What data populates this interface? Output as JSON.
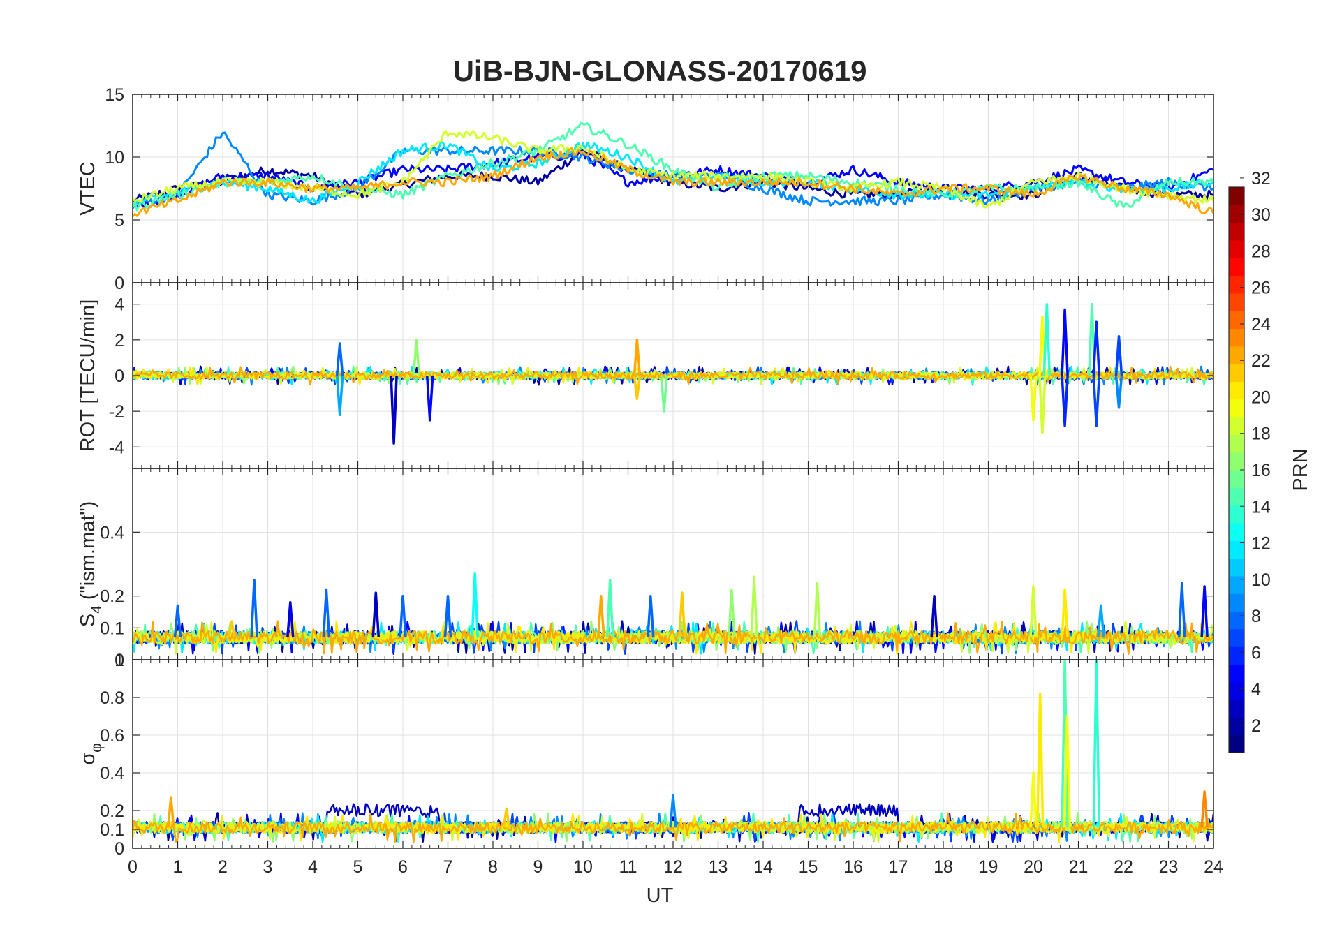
{
  "chart_data": {
    "type": "line",
    "title": "UiB-BJN-GLONASS-20170619",
    "xlabel": "UT",
    "xlim": [
      0,
      24
    ],
    "x_ticks": [
      0,
      1,
      2,
      3,
      4,
      5,
      6,
      7,
      8,
      9,
      10,
      11,
      12,
      13,
      14,
      15,
      16,
      17,
      18,
      19,
      20,
      21,
      22,
      23,
      24
    ],
    "x_tick_labels": [
      "0",
      "1",
      "2",
      "3",
      "4",
      "5",
      "6",
      "7",
      "8",
      "9",
      "10",
      "11",
      "12",
      "13",
      "14",
      "15",
      "16",
      "17",
      "18",
      "19",
      "20",
      "21",
      "22",
      "23",
      "24"
    ],
    "grid": true,
    "panels": [
      {
        "id": "vtec",
        "ylabel": "VTEC",
        "ylim": [
          0,
          15
        ],
        "y_ticks": [
          0,
          5,
          10,
          15
        ],
        "y_tick_labels": [
          "0",
          "5",
          "10",
          "15"
        ],
        "series": [
          {
            "prn": 2,
            "x": [
              0,
              1,
              2,
              3,
              4,
              5,
              6,
              7,
              8,
              9,
              10,
              11,
              12,
              13,
              14,
              15,
              16,
              17,
              18,
              19,
              20,
              21,
              22,
              23,
              24
            ],
            "y": [
              6.5,
              7.5,
              8.0,
              9.0,
              8.5,
              7.0,
              7.8,
              8.5,
              8.5,
              8.0,
              10.5,
              9.0,
              8.0,
              7.5,
              8.0,
              7.5,
              7.0,
              7.0,
              7.5,
              7.0,
              7.0,
              8.5,
              7.5,
              7.0,
              7.0
            ]
          },
          {
            "prn": 5,
            "x": [
              0,
              1,
              2,
              3,
              4,
              5,
              6,
              7,
              8,
              9,
              10,
              11,
              12,
              13,
              14,
              15,
              16,
              17,
              18,
              19,
              20,
              21,
              22,
              23,
              24
            ],
            "y": [
              6.0,
              7.0,
              8.5,
              8.5,
              7.5,
              8.0,
              9.0,
              9.0,
              9.5,
              10.0,
              10.2,
              8.0,
              8.5,
              9.0,
              8.5,
              8.0,
              9.0,
              8.0,
              7.5,
              7.5,
              8.0,
              9.0,
              8.0,
              7.5,
              9.0
            ]
          },
          {
            "prn": 9,
            "x": [
              0,
              1,
              2,
              3,
              4,
              5,
              6,
              7,
              8,
              9,
              10,
              11,
              12,
              13,
              14,
              15,
              16,
              17,
              18,
              19,
              20,
              21,
              22,
              23,
              24
            ],
            "y": [
              6.2,
              7.0,
              12.0,
              7.0,
              6.5,
              7.5,
              10.5,
              10.5,
              10.5,
              10.5,
              10.0,
              9.0,
              8.5,
              8.5,
              7.5,
              6.5,
              6.5,
              6.5,
              7.0,
              6.5,
              7.5,
              8.0,
              7.5,
              8.0,
              7.5
            ]
          },
          {
            "prn": 12,
            "x": [
              0,
              1,
              2,
              3,
              4,
              5,
              6,
              7,
              8,
              9,
              10,
              11,
              12,
              13,
              14,
              15,
              16,
              17,
              18,
              19,
              20,
              21,
              22,
              23,
              24
            ],
            "y": [
              6.3,
              7.2,
              8.0,
              7.5,
              6.5,
              8.0,
              10.5,
              11.0,
              9.0,
              9.5,
              11.0,
              10.0,
              8.0,
              8.5,
              8.0,
              8.0,
              7.5,
              7.0,
              7.0,
              7.0,
              7.5,
              8.0,
              7.5,
              7.5,
              8.0
            ]
          },
          {
            "prn": 15,
            "x": [
              0,
              1,
              2,
              3,
              4,
              5,
              6,
              7,
              8,
              9,
              10,
              11,
              12,
              13,
              14,
              15,
              16,
              17,
              18,
              19,
              20,
              21,
              22,
              23,
              24
            ],
            "y": [
              6.0,
              7.0,
              8.0,
              8.0,
              8.5,
              7.5,
              7.0,
              8.5,
              9.5,
              10.5,
              12.5,
              11.0,
              9.0,
              7.5,
              8.5,
              8.5,
              8.0,
              7.5,
              7.0,
              7.5,
              7.5,
              8.0,
              6.0,
              8.0,
              8.0
            ]
          },
          {
            "prn": 19,
            "x": [
              0,
              1,
              2,
              3,
              4,
              5,
              6,
              7,
              8,
              9,
              10,
              11,
              12,
              13,
              14,
              15,
              16,
              17,
              18,
              19,
              20,
              21,
              22,
              23,
              24
            ],
            "y": [
              6.5,
              7.5,
              8.0,
              8.0,
              7.5,
              7.0,
              8.0,
              12.0,
              11.5,
              10.5,
              10.8,
              9.0,
              8.5,
              8.5,
              8.5,
              8.0,
              7.5,
              8.0,
              7.5,
              6.0,
              8.0,
              8.5,
              7.5,
              7.0,
              6.5
            ]
          },
          {
            "prn": 23,
            "x": [
              0,
              1,
              2,
              3,
              4,
              5,
              6,
              7,
              8,
              9,
              10,
              11,
              12,
              13,
              14,
              15,
              16,
              17,
              18,
              19,
              20,
              21,
              22,
              23,
              24
            ],
            "y": [
              5.5,
              6.5,
              8.0,
              8.0,
              7.5,
              7.5,
              8.0,
              8.0,
              8.5,
              10.0,
              10.5,
              9.0,
              8.0,
              8.0,
              8.0,
              8.0,
              7.5,
              7.0,
              7.5,
              7.5,
              7.0,
              8.5,
              7.5,
              7.0,
              5.5
            ]
          }
        ]
      },
      {
        "id": "rot",
        "ylabel": "ROT [TECU/min]",
        "ylim": [
          -5.2,
          5.2
        ],
        "y_ticks": [
          -4,
          -2,
          0,
          2,
          4
        ],
        "y_tick_labels": [
          "-4",
          "-2",
          "0",
          "2",
          "4"
        ],
        "baseline": 0,
        "noise": 0.2,
        "spikes": [
          {
            "x": 4.6,
            "y": 1.8,
            "prn": 8
          },
          {
            "x": 4.6,
            "y": -2.2,
            "prn": 10
          },
          {
            "x": 5.8,
            "y": -3.8,
            "prn": 3
          },
          {
            "x": 6.3,
            "y": 2.0,
            "prn": 17
          },
          {
            "x": 6.6,
            "y": -2.5,
            "prn": 5
          },
          {
            "x": 11.2,
            "y": 2.0,
            "prn": 23
          },
          {
            "x": 11.2,
            "y": -1.3,
            "prn": 22
          },
          {
            "x": 11.8,
            "y": -2.0,
            "prn": 16
          },
          {
            "x": 20.0,
            "y": -2.5,
            "prn": 20
          },
          {
            "x": 20.2,
            "y": 3.3,
            "prn": 20
          },
          {
            "x": 20.3,
            "y": 4.0,
            "prn": 14
          },
          {
            "x": 20.2,
            "y": -3.2,
            "prn": 19
          },
          {
            "x": 20.7,
            "y": 3.7,
            "prn": 5
          },
          {
            "x": 20.7,
            "y": -2.8,
            "prn": 6
          },
          {
            "x": 21.3,
            "y": 4.0,
            "prn": 15
          },
          {
            "x": 21.4,
            "y": 3.0,
            "prn": 6
          },
          {
            "x": 21.4,
            "y": -2.8,
            "prn": 7
          },
          {
            "x": 21.9,
            "y": 2.2,
            "prn": 7
          },
          {
            "x": 21.9,
            "y": -1.8,
            "prn": 9
          }
        ]
      },
      {
        "id": "s4",
        "ylabel_main": "S",
        "ylabel_sub": "4",
        "ylabel_rest": " (\"ism.mat\")",
        "ylim": [
          0,
          0.6
        ],
        "y_ticks": [
          0,
          0.1,
          0.2,
          0.4
        ],
        "y_tick_labels": [
          "0",
          "0.1",
          "0.2",
          "0.4"
        ],
        "baseline": 0.07,
        "noise": 0.02,
        "spikes": [
          {
            "x": 1.0,
            "y": 0.17,
            "prn": 8
          },
          {
            "x": 2.2,
            "y": 0.12,
            "prn": 22
          },
          {
            "x": 2.7,
            "y": 0.25,
            "prn": 8
          },
          {
            "x": 3.5,
            "y": 0.18,
            "prn": 4
          },
          {
            "x": 4.3,
            "y": 0.22,
            "prn": 8
          },
          {
            "x": 5.4,
            "y": 0.21,
            "prn": 3
          },
          {
            "x": 6.0,
            "y": 0.2,
            "prn": 8
          },
          {
            "x": 7.0,
            "y": 0.2,
            "prn": 8
          },
          {
            "x": 7.6,
            "y": 0.27,
            "prn": 13
          },
          {
            "x": 10.4,
            "y": 0.2,
            "prn": 23
          },
          {
            "x": 10.6,
            "y": 0.25,
            "prn": 15
          },
          {
            "x": 11.5,
            "y": 0.2,
            "prn": 8
          },
          {
            "x": 12.2,
            "y": 0.21,
            "prn": 22
          },
          {
            "x": 13.3,
            "y": 0.22,
            "prn": 17
          },
          {
            "x": 13.8,
            "y": 0.26,
            "prn": 18
          },
          {
            "x": 15.2,
            "y": 0.24,
            "prn": 18
          },
          {
            "x": 17.8,
            "y": 0.2,
            "prn": 3
          },
          {
            "x": 20.0,
            "y": 0.23,
            "prn": 19
          },
          {
            "x": 20.7,
            "y": 0.22,
            "prn": 21
          },
          {
            "x": 21.5,
            "y": 0.17,
            "prn": 10
          },
          {
            "x": 23.3,
            "y": 0.24,
            "prn": 8
          },
          {
            "x": 23.8,
            "y": 0.23,
            "prn": 5
          }
        ]
      },
      {
        "id": "sigma",
        "ylabel_main": "σ",
        "ylabel_sub": "φ",
        "ylim": [
          0,
          1
        ],
        "y_ticks": [
          0,
          0.1,
          0.2,
          0.4,
          0.6,
          0.8,
          1
        ],
        "y_tick_labels": [
          "0",
          "0.1",
          "0.2",
          "0.4",
          "0.6",
          "0.8",
          "1"
        ],
        "baseline": 0.11,
        "noise": 0.03,
        "bands": [
          {
            "x0": 4.3,
            "x1": 6.8,
            "y": 0.2,
            "prn": 3
          },
          {
            "x0": 14.8,
            "x1": 17.0,
            "y": 0.2,
            "prn": 3
          }
        ],
        "spikes": [
          {
            "x": 0.85,
            "y": 0.27,
            "prn": 23
          },
          {
            "x": 8.3,
            "y": 0.21,
            "prn": 22
          },
          {
            "x": 12.0,
            "y": 0.28,
            "prn": 9
          },
          {
            "x": 20.0,
            "y": 0.4,
            "prn": 20
          },
          {
            "x": 20.15,
            "y": 0.82,
            "prn": 21
          },
          {
            "x": 20.7,
            "y": 1.0,
            "prn": 15
          },
          {
            "x": 20.75,
            "y": 0.7,
            "prn": 20
          },
          {
            "x": 21.4,
            "y": 1.0,
            "prn": 14
          },
          {
            "x": 23.8,
            "y": 0.3,
            "prn": 24
          }
        ]
      }
    ],
    "colorbar": {
      "label": "PRN",
      "colormap": "jet",
      "range": [
        1,
        32
      ],
      "ticks": [
        2,
        4,
        6,
        8,
        10,
        12,
        14,
        16,
        18,
        20,
        22,
        24,
        26,
        28,
        30,
        32
      ],
      "tick_labels": [
        "2",
        "4",
        "6",
        "8",
        "10",
        "12",
        "14",
        "16",
        "18",
        "20",
        "22",
        "24",
        "26",
        "28",
        "30",
        "32"
      ]
    }
  }
}
